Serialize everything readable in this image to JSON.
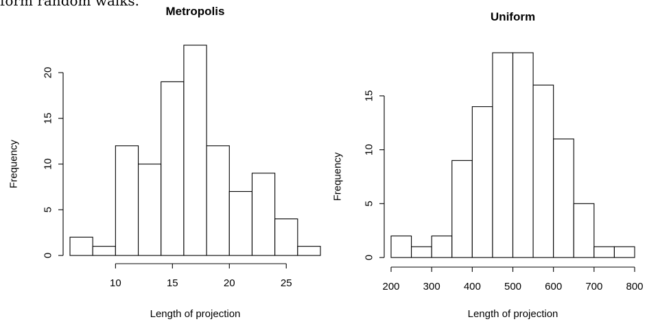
{
  "caption": "form random walks.",
  "chart_data": [
    {
      "type": "bar",
      "title": "Metropolis",
      "xlabel": "Length of projection",
      "ylabel": "Frequency",
      "bin_edges": [
        6,
        8,
        10,
        12,
        14,
        16,
        18,
        20,
        22,
        24,
        26,
        28
      ],
      "values": [
        2,
        1,
        12,
        10,
        19,
        23,
        12,
        7,
        9,
        4,
        1
      ],
      "x_ticks": [
        10,
        15,
        20,
        25
      ],
      "y_ticks": [
        0,
        5,
        10,
        15,
        20
      ],
      "xlim": [
        10,
        25
      ],
      "ylim": [
        0,
        23
      ],
      "grid": false
    },
    {
      "type": "bar",
      "title": "Uniform",
      "xlabel": "Length of projection",
      "ylabel": "Frequency",
      "bin_edges": [
        200,
        250,
        300,
        350,
        400,
        450,
        500,
        550,
        600,
        650,
        700,
        750,
        800
      ],
      "values": [
        2,
        1,
        2,
        9,
        14,
        19,
        19,
        16,
        11,
        5,
        1,
        1
      ],
      "x_ticks": [
        200,
        300,
        400,
        500,
        600,
        700,
        800
      ],
      "y_ticks": [
        0,
        5,
        10,
        15
      ],
      "xlim": [
        200,
        800
      ],
      "ylim": [
        0,
        19
      ],
      "grid": false
    }
  ]
}
